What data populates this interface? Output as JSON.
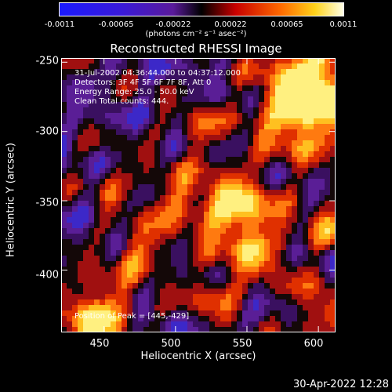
{
  "colorbar": {
    "ticks": [
      "-0.0011",
      "-0.00065",
      "-0.00022",
      "0.00022",
      "0.00065",
      "0.0011"
    ],
    "units": "(photons cm⁻² s⁻¹ asec⁻²)"
  },
  "chart_data": {
    "type": "heatmap",
    "title": "Reconstructed RHESSI Image",
    "xlabel": "Heliocentric X (arcsec)",
    "ylabel": "Heliocentric Y (arcsec)",
    "xlim": [
      420,
      612
    ],
    "ylim": [
      -445,
      -247
    ],
    "value_range": [
      -0.0011,
      0.0011
    ],
    "x_ticks": [
      "450",
      "500",
      "550",
      "600"
    ],
    "y_ticks": [
      "-250",
      "-300",
      "-350",
      "-400"
    ],
    "annotations": [
      "31-Jul-2002 04:36:44.000 to 04:37:12.000",
      "Detectors: 3F 4F 5F 6F 7F 8F, Att 0",
      "Energy Range: 25.0 - 50.0 keV",
      "Clean     Total counts: 444."
    ],
    "peak_label": "Position of Peak = [445,-429]",
    "peak_position": [
      445,
      -429
    ],
    "total_counts": 444
  },
  "footer": {
    "timestamp": "30-Apr-2022 12:28"
  }
}
